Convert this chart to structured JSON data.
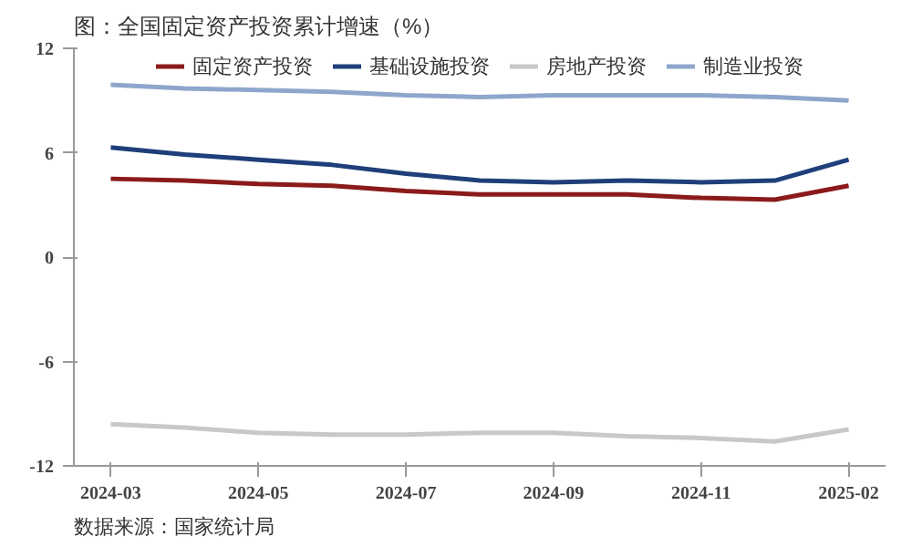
{
  "chart_data": {
    "type": "line",
    "title": "图：全国固定资产投资累计增速（%）",
    "annotations": [
      "数据来源：国家统计局"
    ],
    "categories": [
      "2024-03",
      null,
      "2024-05",
      null,
      "2024-07",
      null,
      "2024-09",
      null,
      "2024-11",
      null,
      "2025-02"
    ],
    "series": [
      {
        "name": "固定资产投资",
        "color": "#8b1a1a",
        "values": [
          4.5,
          4.4,
          4.2,
          4.1,
          3.8,
          3.6,
          3.6,
          3.6,
          3.4,
          3.3,
          4.1
        ]
      },
      {
        "name": "基础设施投资",
        "color": "#1f3f7a",
        "values": [
          6.3,
          5.9,
          5.6,
          5.3,
          4.8,
          4.4,
          4.3,
          4.4,
          4.3,
          4.4,
          5.6
        ]
      },
      {
        "name": "房地产投资",
        "color": "#c8c8c8",
        "values": [
          -9.6,
          -9.8,
          -10.1,
          -10.2,
          -10.2,
          -10.1,
          -10.1,
          -10.3,
          -10.4,
          -10.6,
          -9.9
        ]
      },
      {
        "name": "制造业投资",
        "color": "#8ea6cc",
        "values": [
          9.9,
          9.7,
          9.6,
          9.5,
          9.3,
          9.2,
          9.3,
          9.3,
          9.3,
          9.2,
          9.0
        ]
      }
    ],
    "ylim": [
      -12,
      12
    ],
    "yticks": [
      -12,
      -6,
      0,
      6,
      12
    ],
    "grid": false,
    "legend": "top",
    "line_style": "solid",
    "marker": "none"
  }
}
